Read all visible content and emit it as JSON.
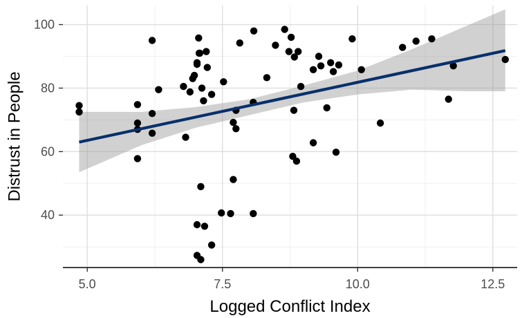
{
  "chart_data": {
    "type": "scatter",
    "xlabel": "Logged Conflict Index",
    "ylabel": "Distrust in People",
    "xlim": [
      4.55,
      12.95
    ],
    "ylim": [
      23.5,
      106
    ],
    "x_ticks": [
      5.0,
      7.5,
      10.0,
      12.5
    ],
    "x_tick_labels": [
      "5.0",
      "7.5",
      "10.0",
      "12.5"
    ],
    "y_ticks": [
      40,
      60,
      80,
      100
    ],
    "y_tick_labels": [
      "40",
      "60",
      "80",
      "100"
    ],
    "x_minor_ticks": [
      6.25,
      8.75,
      11.25
    ],
    "y_minor_ticks": [
      30,
      50,
      70,
      90
    ],
    "grid": true,
    "legend": "none",
    "points": {
      "x": [
        4.85,
        4.85,
        5.93,
        5.93,
        5.93,
        5.93,
        6.2,
        6.2,
        6.2,
        6.32,
        6.78,
        6.82,
        6.9,
        6.95,
        6.98,
        7.03,
        7.03,
        7.06,
        7.07,
        7.08,
        7.12,
        7.15,
        7.2,
        7.22,
        7.3,
        7.1,
        7.17,
        7.03,
        7.03,
        7.1,
        7.3,
        7.48,
        7.52,
        7.65,
        7.7,
        7.7,
        7.75,
        7.75,
        7.82,
        8.07,
        8.08,
        8.07,
        8.32,
        8.48,
        8.65,
        8.73,
        8.77,
        8.8,
        8.82,
        8.83,
        8.87,
        8.9,
        8.95,
        9.18,
        9.18,
        9.28,
        9.32,
        9.43,
        9.5,
        9.55,
        9.6,
        9.65,
        9.9,
        10.07,
        10.42,
        10.83,
        11.08,
        11.37,
        11.68,
        11.77,
        12.73
      ],
      "y": [
        74.5,
        72.5,
        74.8,
        69.0,
        67.0,
        57.8,
        95.0,
        72.0,
        65.8,
        79.5,
        80.5,
        64.5,
        78.8,
        83.0,
        84.0,
        87.5,
        88.0,
        95.8,
        91.0,
        91.0,
        80.0,
        76.0,
        91.5,
        86.5,
        78.0,
        49.0,
        36.5,
        37.0,
        27.3,
        26.0,
        30.6,
        40.7,
        82.0,
        40.5,
        69.2,
        51.2,
        67.2,
        73.0,
        94.2,
        75.5,
        98.0,
        40.5,
        83.3,
        93.5,
        98.5,
        91.5,
        96.0,
        58.5,
        73.0,
        89.8,
        57.0,
        91.5,
        80.5,
        62.8,
        85.8,
        90.0,
        87.0,
        73.8,
        88.0,
        85.2,
        59.8,
        87.3,
        95.5,
        85.8,
        69.0,
        92.8,
        94.8,
        95.5,
        76.5,
        87.0,
        89.0
      ]
    },
    "fit": {
      "type": "linear",
      "x": [
        4.85,
        12.73
      ],
      "y": [
        63.0,
        91.8
      ]
    },
    "confidence_band": {
      "x": [
        4.85,
        6.0,
        7.0,
        8.0,
        9.0,
        10.0,
        11.0,
        12.0,
        12.73
      ],
      "lower": [
        53.5,
        62.0,
        67.5,
        71.5,
        75.5,
        78.0,
        79.5,
        79.0,
        79.0
      ],
      "upper": [
        72.5,
        72.5,
        74.0,
        76.5,
        80.8,
        85.5,
        92.2,
        99.5,
        104.8
      ]
    },
    "colors": {
      "points": "#000000",
      "fit_line": "#08306b",
      "band": "#999999",
      "grid_major": "#dedede",
      "grid_minor": "#efefef",
      "axis": "#000000",
      "tick_text": "#4d4d4d"
    }
  }
}
